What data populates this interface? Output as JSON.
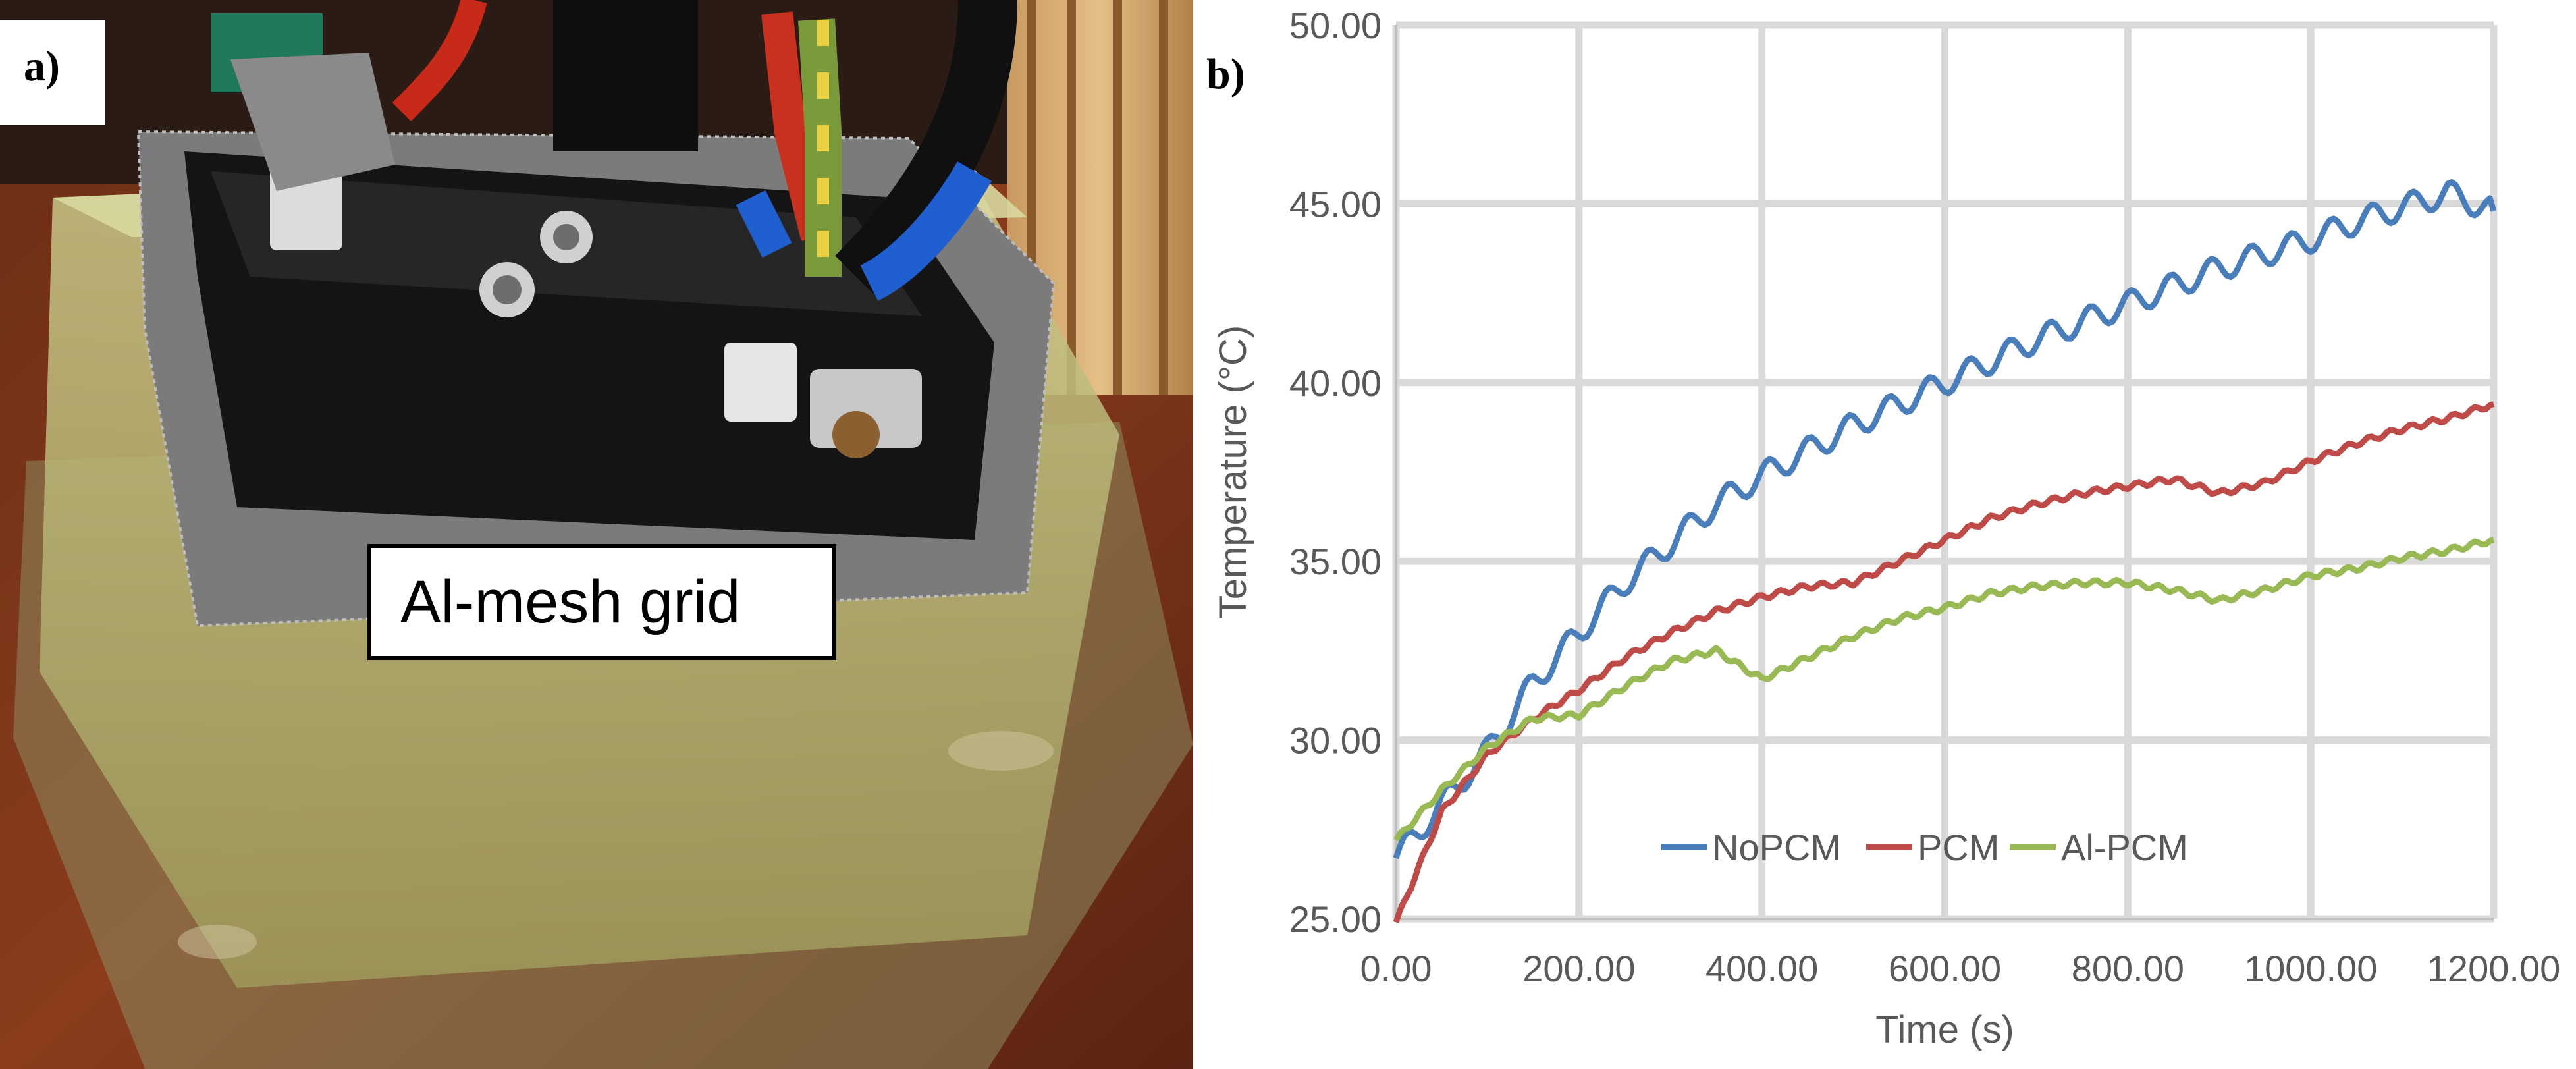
{
  "panel_a": {
    "label": "a)",
    "callout": "Al-mesh grid"
  },
  "panel_b": {
    "label": "b)"
  },
  "colors": {
    "NoPCM": "#4a7ebb",
    "PCM": "#be4b48",
    "Al-PCM": "#98b954",
    "grid": "#d9d9d9",
    "axis_text": "#595959"
  },
  "chart_data": {
    "type": "line",
    "title": "",
    "xlabel": "Time (s)",
    "ylabel": "Temperature (°C)",
    "xlim": [
      0,
      1200
    ],
    "ylim": [
      25,
      50
    ],
    "x_ticks": [
      "0.00",
      "200.00",
      "400.00",
      "600.00",
      "800.00",
      "1000.00",
      "1200.00"
    ],
    "y_ticks": [
      "25.00",
      "30.00",
      "35.00",
      "40.00",
      "45.00",
      "50.00"
    ],
    "grid": true,
    "legend_position": "bottom-center inside plot",
    "x": [
      0,
      50,
      100,
      150,
      200,
      250,
      300,
      350,
      400,
      450,
      500,
      550,
      600,
      650,
      700,
      750,
      800,
      850,
      900,
      950,
      1000,
      1050,
      1100,
      1150,
      1200
    ],
    "series": [
      {
        "name": "NoPCM",
        "values": [
          26.7,
          28.2,
          29.7,
          31.6,
          33.0,
          34.4,
          35.5,
          36.6,
          37.4,
          38.1,
          38.8,
          39.4,
          40.0,
          40.6,
          41.2,
          41.7,
          42.2,
          42.7,
          43.2,
          43.6,
          44.0,
          44.5,
          44.9,
          45.3,
          44.8
        ]
      },
      {
        "name": "PCM",
        "values": [
          24.9,
          28.0,
          29.6,
          30.6,
          31.4,
          32.3,
          33.0,
          33.6,
          34.0,
          34.3,
          34.4,
          35.0,
          35.6,
          36.2,
          36.6,
          36.9,
          37.1,
          37.3,
          36.9,
          37.2,
          37.8,
          38.3,
          38.7,
          39.0,
          39.4
        ]
      },
      {
        "name": "Al-PCM",
        "values": [
          27.2,
          28.6,
          29.8,
          30.6,
          30.7,
          31.5,
          32.2,
          32.5,
          31.7,
          32.3,
          32.9,
          33.4,
          33.7,
          34.1,
          34.3,
          34.4,
          34.4,
          34.2,
          33.9,
          34.2,
          34.6,
          34.8,
          35.1,
          35.3,
          35.6
        ]
      }
    ]
  }
}
